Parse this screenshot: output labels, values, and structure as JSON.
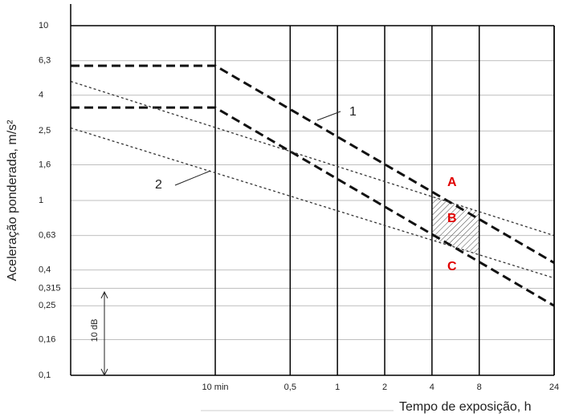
{
  "chart_data": {
    "type": "line",
    "y_label": "Aceleração ponderada, m/s²",
    "x_label": "Tempo de exposição, h",
    "log_x": true,
    "log_y": true,
    "grid": true,
    "xlim": [
      0.02,
      24
    ],
    "ylim": [
      0.1,
      10
    ],
    "xticks": [
      {
        "value": 0.1667,
        "label": "10 min"
      },
      {
        "value": 0.5,
        "label": "0,5"
      },
      1,
      2,
      4,
      8,
      24
    ],
    "yticks": [
      10,
      {
        "value": 6.3,
        "label": "6,3"
      },
      4,
      {
        "value": 2.5,
        "label": "2,5"
      },
      {
        "value": 1.6,
        "label": "1,6"
      },
      1,
      {
        "value": 0.63,
        "label": "0,63"
      },
      {
        "value": 0.4,
        "label": "0,4"
      },
      {
        "value": 0.315,
        "label": "0,315"
      },
      {
        "value": 0.25,
        "label": "0,25"
      },
      {
        "value": 0.16,
        "label": "0,16"
      },
      {
        "value": 0.1,
        "label": "0,1"
      }
    ],
    "series": [
      {
        "color": "#111111",
        "linestyle": "dashed",
        "x": [
          0.02,
          0.1667,
          24
        ],
        "values": [
          5.9,
          5.9,
          0.44
        ]
      },
      {
        "color": "#111111",
        "linestyle": "dashed",
        "x": [
          0.02,
          0.1667,
          24
        ],
        "values": [
          3.4,
          3.4,
          0.25
        ]
      },
      {
        "color": "#333333",
        "linestyle": "dotted",
        "x": [
          0.02,
          24
        ],
        "values": [
          4.8,
          0.63
        ]
      },
      {
        "color": "#333333",
        "linestyle": "dotted",
        "x": [
          0.02,
          24
        ],
        "values": [
          2.6,
          0.36
        ]
      }
    ],
    "annotations": [
      "1",
      "2",
      "A",
      "B",
      "C",
      "10 dB"
    ]
  }
}
